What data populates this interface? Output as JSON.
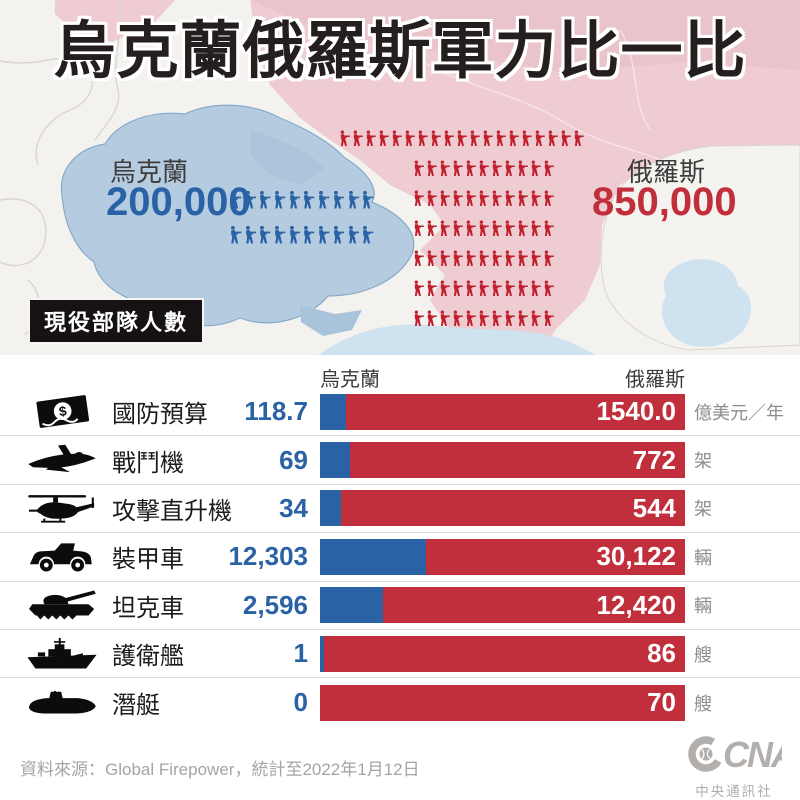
{
  "title": "烏克蘭俄羅斯軍力比一比",
  "map": {
    "badge": "現役部隊人數",
    "icon_unit": "soldier-icon",
    "ukraine": {
      "label": "烏克蘭",
      "value": "200,000",
      "icon_rows": [
        10,
        10
      ],
      "color": "#2a62a6"
    },
    "russia": {
      "label": "俄羅斯",
      "value": "850,000",
      "partial_row": 19,
      "icon_rows": [
        19,
        11,
        11,
        11,
        11,
        11,
        11
      ],
      "color": "#c12f3c"
    }
  },
  "chart_data": {
    "type": "bar",
    "title": "烏克蘭俄羅斯軍力比一比",
    "legend_position": "top",
    "col_headers": {
      "ukraine": "烏克蘭",
      "russia": "俄羅斯"
    },
    "colors": {
      "ukraine": "#2a62a6",
      "russia": "#c12f3c"
    },
    "rows": [
      {
        "label": "國防預算",
        "icon": "banknote-icon",
        "ukraine": 118.7,
        "ukraine_display": "118.7",
        "russia": 1540.0,
        "russia_display": "1540.0",
        "unit": "億美元／年"
      },
      {
        "label": "戰鬥機",
        "icon": "fighter-jet-icon",
        "ukraine": 69,
        "ukraine_display": "69",
        "russia": 772,
        "russia_display": "772",
        "unit": "架"
      },
      {
        "label": "攻擊直升機",
        "icon": "attack-helicopter-icon",
        "ukraine": 34,
        "ukraine_display": "34",
        "russia": 544,
        "russia_display": "544",
        "unit": "架"
      },
      {
        "label": "裝甲車",
        "icon": "armored-vehicle-icon",
        "ukraine": 12303,
        "ukraine_display": "12,303",
        "russia": 30122,
        "russia_display": "30,122",
        "unit": "輛"
      },
      {
        "label": "坦克車",
        "icon": "tank-icon",
        "ukraine": 2596,
        "ukraine_display": "2,596",
        "russia": 12420,
        "russia_display": "12,420",
        "unit": "輛"
      },
      {
        "label": "護衛艦",
        "icon": "frigate-icon",
        "ukraine": 1,
        "ukraine_display": "1",
        "russia": 86,
        "russia_display": "86",
        "unit": "艘"
      },
      {
        "label": "潛艇",
        "icon": "submarine-icon",
        "ukraine": 0,
        "ukraine_display": "0",
        "russia": 70,
        "russia_display": "70",
        "unit": "艘"
      }
    ]
  },
  "footer": {
    "source": "資料來源：Global Firepower，統計至2022年1月12日",
    "logo": "CNA",
    "logo_caption": "中央通訊社"
  }
}
